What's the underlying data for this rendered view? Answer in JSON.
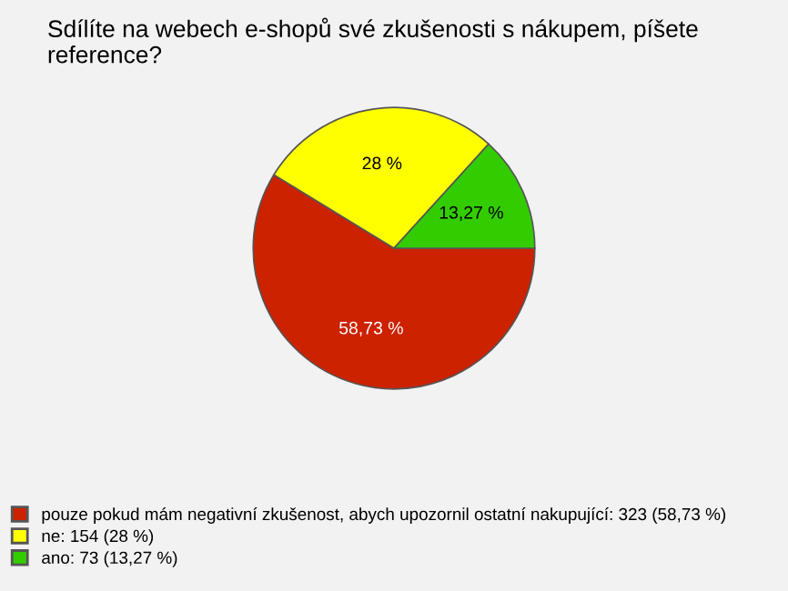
{
  "chart_data": {
    "type": "pie",
    "title": "Sdílíte na webech e-shopů své zkušenosti s nákupem, píšete reference?",
    "categories": [
      "pouze pokud mám negativní zkušenost, abych upozornil ostatní nakupující: 323 (58,73 %)",
      "ne: 154 (28 %)",
      "ano: 73 (13,27 %)"
    ],
    "values": [
      58.73,
      28,
      13.27
    ],
    "value_labels": [
      "58,73 %",
      "28 %",
      "13,27 %"
    ],
    "colors": [
      "#cc2200",
      "#ffff00",
      "#33cc00"
    ],
    "legend": "bottom"
  }
}
